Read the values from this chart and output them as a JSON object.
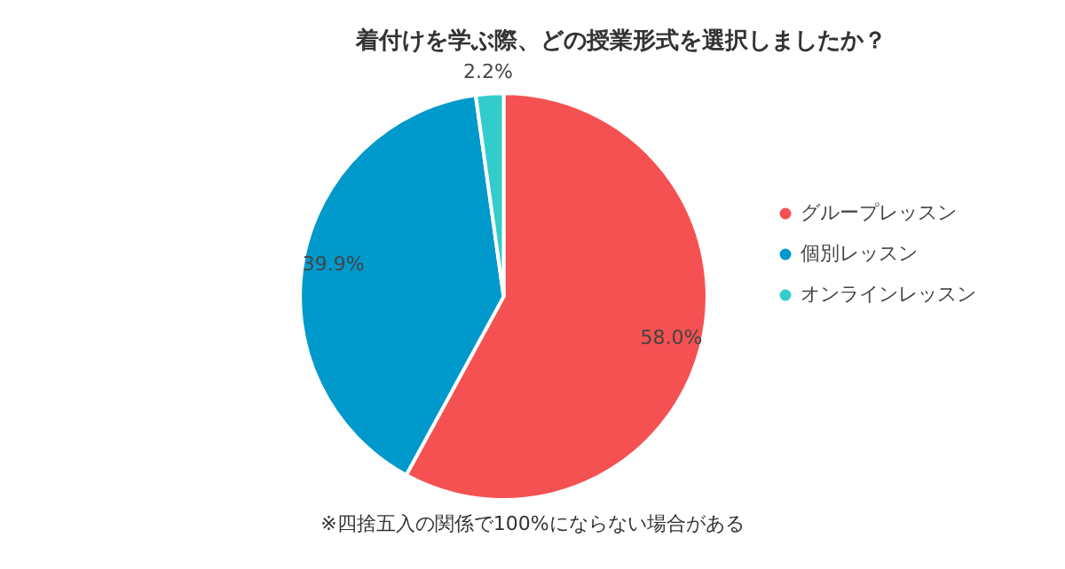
{
  "chart_data": {
    "type": "pie",
    "title": "着付けを学ぶ際、どの授業形式を選択しましたか？",
    "categories": [
      "グループレッスン",
      "個別レッスン",
      "オンラインレッスン"
    ],
    "values": [
      58.0,
      39.9,
      2.2
    ],
    "colors": [
      "#f55152",
      "#0099cc",
      "#33cccc"
    ],
    "value_labels": [
      "58.0%",
      "39.9%",
      "2.2%"
    ],
    "legend": "right",
    "annotations": [
      "※四捨五入の関係で100%にならない場合がある"
    ]
  }
}
